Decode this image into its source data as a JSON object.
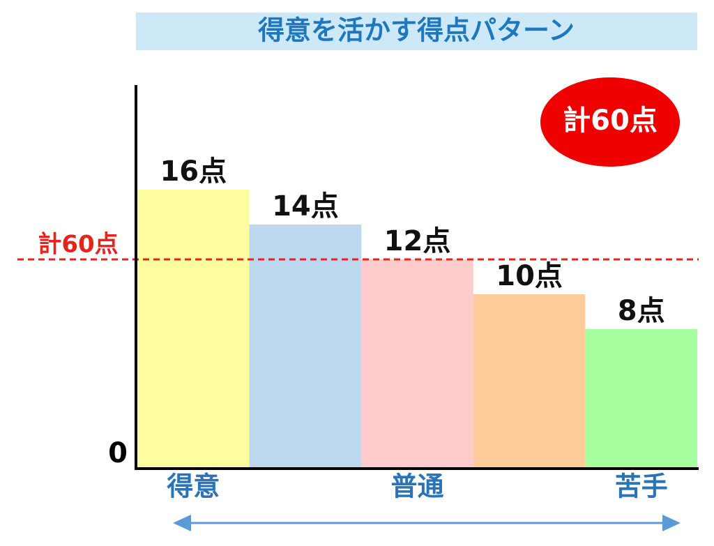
{
  "chart_data": {
    "type": "bar",
    "title": "得意を活かす得点パターン",
    "categories": [
      "得意",
      null,
      "普通",
      null,
      "苦手"
    ],
    "values": [
      16,
      14,
      12,
      10,
      8
    ],
    "value_labels": [
      "16点",
      "14点",
      "12点",
      "10点",
      "8点"
    ],
    "colors": [
      "#fdfd9e",
      "#bdd7ee",
      "#ffcccc",
      "#fdcc9a",
      "#a6ff9e"
    ],
    "ylim": [
      0,
      22
    ],
    "yticks": [
      0
    ],
    "reference_line": {
      "value": 12,
      "label": "計60点",
      "color": "#e8231e"
    },
    "badge": "計60点"
  }
}
